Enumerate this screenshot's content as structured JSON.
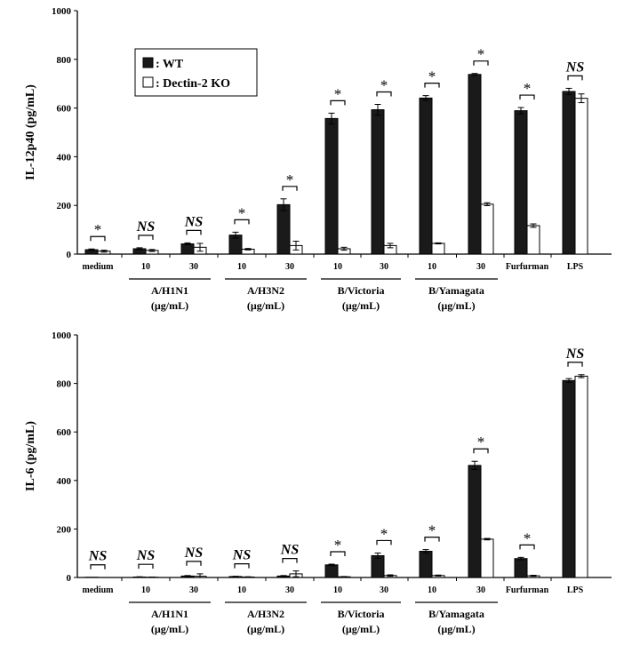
{
  "legend": {
    "wt_label": ": WT",
    "ko_label": ": Dectin-2 KO"
  },
  "chart_data": [
    {
      "type": "bar",
      "ylabel": "IL-12p40 (pg/mL)",
      "ylim": [
        0,
        1000
      ],
      "yticks": [
        0,
        200,
        400,
        600,
        800,
        1000
      ],
      "categories": [
        "medium",
        "10",
        "30",
        "10",
        "30",
        "10",
        "30",
        "10",
        "30",
        "Furfurman",
        "LPS"
      ],
      "groups": [
        {
          "label": [
            "A/H1N1",
            "(µg/mL)"
          ],
          "from": 1,
          "to": 2
        },
        {
          "label": [
            "A/H3N2",
            "(µg/mL)"
          ],
          "from": 3,
          "to": 4
        },
        {
          "label": [
            "B/Victoria",
            "(µg/mL)"
          ],
          "from": 5,
          "to": 6
        },
        {
          "label": [
            "B/Yamagata",
            "(µg/mL)"
          ],
          "from": 7,
          "to": 8
        }
      ],
      "series": [
        {
          "name": "WT",
          "color": "#1a1a1a",
          "values": [
            18,
            22,
            42,
            78,
            203,
            557,
            593,
            641,
            738,
            589,
            668
          ],
          "errors": [
            3,
            4,
            4,
            12,
            24,
            22,
            22,
            10,
            4,
            13,
            13
          ]
        },
        {
          "name": "Dectin-2 KO",
          "color": "#ffffff",
          "values": [
            12,
            15,
            28,
            20,
            35,
            22,
            35,
            44,
            205,
            117,
            640
          ],
          "errors": [
            4,
            4,
            16,
            3,
            18,
            6,
            9,
            2,
            6,
            7,
            18
          ]
        }
      ],
      "significance": [
        "*",
        "NS",
        "NS",
        "*",
        "*",
        "*",
        "*",
        "*",
        "*",
        "*",
        "NS"
      ]
    },
    {
      "type": "bar",
      "ylabel": "IL-6 (pg/mL)",
      "ylim": [
        0,
        1000
      ],
      "yticks": [
        0,
        200,
        400,
        600,
        800,
        1000
      ],
      "categories": [
        "medium",
        "10",
        "30",
        "10",
        "30",
        "10",
        "30",
        "10",
        "30",
        "Furfurman",
        "LPS"
      ],
      "groups": [
        {
          "label": [
            "A/H1N1",
            "(µg/mL)"
          ],
          "from": 1,
          "to": 2
        },
        {
          "label": [
            "A/H3N2",
            "(µg/mL)"
          ],
          "from": 3,
          "to": 4
        },
        {
          "label": [
            "B/Victoria",
            "(µg/mL)"
          ],
          "from": 5,
          "to": 6
        },
        {
          "label": [
            "B/Yamagata",
            "(µg/mL)"
          ],
          "from": 7,
          "to": 8
        }
      ],
      "series": [
        {
          "name": "WT",
          "color": "#1a1a1a",
          "values": [
            1,
            2,
            6,
            4,
            6,
            52,
            90,
            108,
            462,
            78,
            812
          ],
          "errors": [
            0,
            1,
            2,
            1,
            2,
            3,
            11,
            7,
            17,
            5,
            8
          ]
        },
        {
          "name": "Dectin-2 KO",
          "color": "#ffffff",
          "values": [
            0,
            1,
            5,
            2,
            15,
            3,
            8,
            8,
            158,
            7,
            830
          ],
          "errors": [
            0,
            1,
            10,
            1,
            12,
            1,
            3,
            2,
            3,
            2,
            6
          ]
        }
      ],
      "significance": [
        "NS",
        "NS",
        "NS",
        "NS",
        "NS",
        "*",
        "*",
        "*",
        "*",
        "*",
        "NS"
      ]
    }
  ]
}
